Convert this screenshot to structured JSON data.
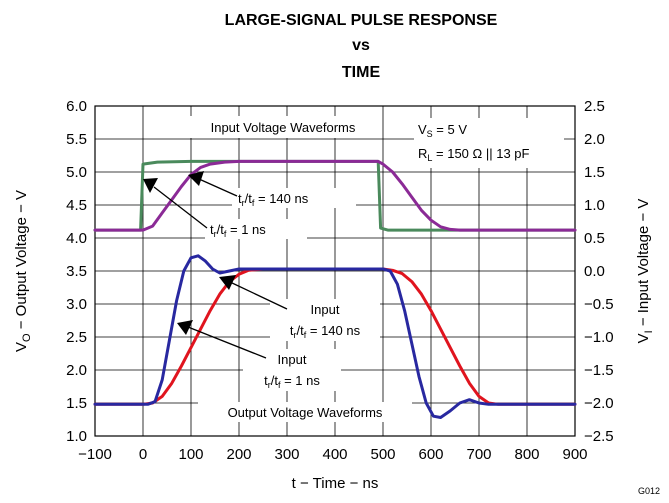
{
  "chart_data": {
    "type": "line",
    "title": [
      "LARGE-SIGNAL PULSE RESPONSE",
      "vs",
      "TIME"
    ],
    "xlabel": "t − Time − ns",
    "ylabel_left": {
      "pre": "V",
      "sub": "O",
      "post": " − Output Voltage − V"
    },
    "ylabel_right": {
      "pre": "V",
      "sub": "I",
      "post": " − Input Voltage − V"
    },
    "xlim": [
      -100,
      900
    ],
    "ylim_left": [
      1.0,
      6.0
    ],
    "ylim_right": [
      -2.5,
      2.5
    ],
    "x_ticks": [
      "−100",
      "0",
      "100",
      "200",
      "300",
      "400",
      "500",
      "600",
      "700",
      "800",
      "900"
    ],
    "y_left_ticks": [
      "1.0",
      "1.5",
      "2.0",
      "2.5",
      "3.0",
      "3.5",
      "4.0",
      "4.5",
      "5.0",
      "5.5",
      "6.0"
    ],
    "y_right_ticks": [
      "−2.5",
      "−2.0",
      "−1.5",
      "−1.0",
      "−0.5",
      "0.0",
      "0.5",
      "1.0",
      "1.5",
      "2.0",
      "2.5"
    ],
    "grid": true,
    "series": [
      {
        "axis": "left",
        "color": "#4a8a5c",
        "points": [
          [
            -100,
            4.12
          ],
          [
            -5,
            4.12
          ],
          [
            0,
            5.12
          ],
          [
            30,
            5.15
          ],
          [
            100,
            5.16
          ],
          [
            490,
            5.16
          ],
          [
            495,
            4.15
          ],
          [
            510,
            4.12
          ],
          [
            900,
            4.12
          ]
        ]
      },
      {
        "axis": "left",
        "color": "#8b2a96",
        "points": [
          [
            -100,
            4.12
          ],
          [
            0,
            4.12
          ],
          [
            20,
            4.18
          ],
          [
            40,
            4.38
          ],
          [
            60,
            4.58
          ],
          [
            80,
            4.78
          ],
          [
            100,
            4.96
          ],
          [
            120,
            5.07
          ],
          [
            140,
            5.12
          ],
          [
            170,
            5.15
          ],
          [
            200,
            5.16
          ],
          [
            490,
            5.16
          ],
          [
            500,
            5.12
          ],
          [
            520,
            5.0
          ],
          [
            540,
            4.82
          ],
          [
            560,
            4.62
          ],
          [
            580,
            4.42
          ],
          [
            600,
            4.27
          ],
          [
            620,
            4.17
          ],
          [
            640,
            4.13
          ],
          [
            660,
            4.12
          ],
          [
            900,
            4.12
          ]
        ]
      },
      {
        "axis": "left",
        "color": "#e0141e",
        "points": [
          [
            -100,
            1.48
          ],
          [
            0,
            1.48
          ],
          [
            20,
            1.5
          ],
          [
            40,
            1.6
          ],
          [
            60,
            1.8
          ],
          [
            80,
            2.06
          ],
          [
            100,
            2.34
          ],
          [
            120,
            2.62
          ],
          [
            140,
            2.9
          ],
          [
            160,
            3.15
          ],
          [
            180,
            3.34
          ],
          [
            200,
            3.45
          ],
          [
            220,
            3.51
          ],
          [
            250,
            3.53
          ],
          [
            500,
            3.53
          ],
          [
            520,
            3.51
          ],
          [
            540,
            3.46
          ],
          [
            560,
            3.34
          ],
          [
            580,
            3.15
          ],
          [
            600,
            2.9
          ],
          [
            620,
            2.62
          ],
          [
            640,
            2.34
          ],
          [
            660,
            2.06
          ],
          [
            680,
            1.8
          ],
          [
            700,
            1.6
          ],
          [
            720,
            1.5
          ],
          [
            740,
            1.48
          ],
          [
            900,
            1.48
          ]
        ]
      },
      {
        "axis": "left",
        "color": "#2828a0",
        "points": [
          [
            -100,
            1.48
          ],
          [
            10,
            1.48
          ],
          [
            25,
            1.52
          ],
          [
            40,
            1.85
          ],
          [
            55,
            2.45
          ],
          [
            70,
            3.05
          ],
          [
            85,
            3.5
          ],
          [
            100,
            3.7
          ],
          [
            115,
            3.73
          ],
          [
            130,
            3.65
          ],
          [
            145,
            3.53
          ],
          [
            160,
            3.47
          ],
          [
            180,
            3.5
          ],
          [
            200,
            3.53
          ],
          [
            500,
            3.53
          ],
          [
            515,
            3.5
          ],
          [
            530,
            3.3
          ],
          [
            545,
            2.9
          ],
          [
            560,
            2.4
          ],
          [
            575,
            1.9
          ],
          [
            590,
            1.5
          ],
          [
            605,
            1.3
          ],
          [
            620,
            1.28
          ],
          [
            640,
            1.38
          ],
          [
            660,
            1.5
          ],
          [
            680,
            1.55
          ],
          [
            700,
            1.5
          ],
          [
            720,
            1.48
          ],
          [
            900,
            1.48
          ]
        ]
      }
    ],
    "annotations": {
      "input_waveforms": "Input Voltage Waveforms",
      "output_waveforms": "Output Voltage Waveforms",
      "vs": {
        "pre": "V",
        "sub": "S",
        "post": " = 5 V"
      },
      "rl": {
        "pre": "R",
        "sub": "L",
        "post": " = 150 Ω || 13 pF"
      },
      "in140": {
        "t": "t",
        "s1": "r",
        "m": "/t",
        "s2": "f",
        "post": " = 140 ns"
      },
      "in1": {
        "t": "t",
        "s1": "r",
        "m": "/t",
        "s2": "f",
        "post": " = 1 ns"
      },
      "out140_top": "Input",
      "out140": {
        "t": "t",
        "s1": "r",
        "m": "/t",
        "s2": "f",
        "post": " = 140 ns"
      },
      "out1_top": "Input",
      "out1": {
        "t": "t",
        "s1": "r",
        "m": "/t",
        "s2": "f",
        "post": " = 1 ns"
      }
    },
    "figure_code": "G012"
  }
}
